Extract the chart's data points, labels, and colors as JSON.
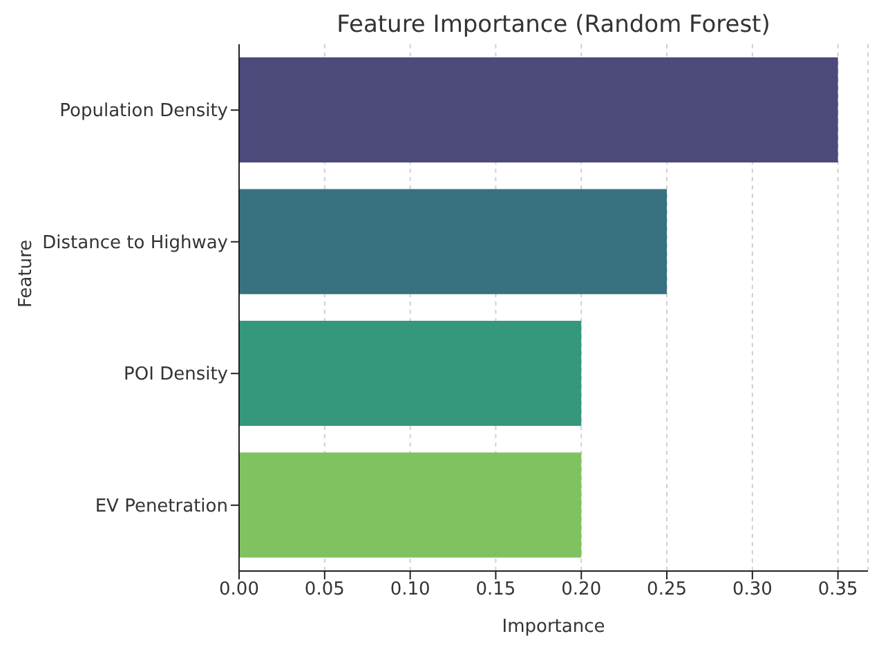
{
  "chart_data": {
    "type": "bar",
    "orientation": "horizontal",
    "title": "Feature Importance (Random Forest)",
    "xlabel": "Importance",
    "ylabel": "Feature",
    "categories": [
      "Population Density",
      "Distance to Highway",
      "POI Density",
      "EV Penetration"
    ],
    "values": [
      0.35,
      0.25,
      0.2,
      0.2
    ],
    "colors": [
      "#4b4a7b",
      "#387280",
      "#35987c",
      "#80c25f"
    ],
    "xlim": [
      0,
      0.3675
    ],
    "xticks": [
      {
        "value": 0,
        "label": "0.00"
      },
      {
        "value": 0.05,
        "label": "0.05"
      },
      {
        "value": 0.1,
        "label": "0.10"
      },
      {
        "value": 0.15,
        "label": "0.15"
      },
      {
        "value": 0.2,
        "label": "0.20"
      },
      {
        "value": 0.25,
        "label": "0.25"
      },
      {
        "value": 0.3,
        "label": "0.30"
      },
      {
        "value": 0.35,
        "label": "0.35"
      }
    ],
    "grid": "x"
  }
}
